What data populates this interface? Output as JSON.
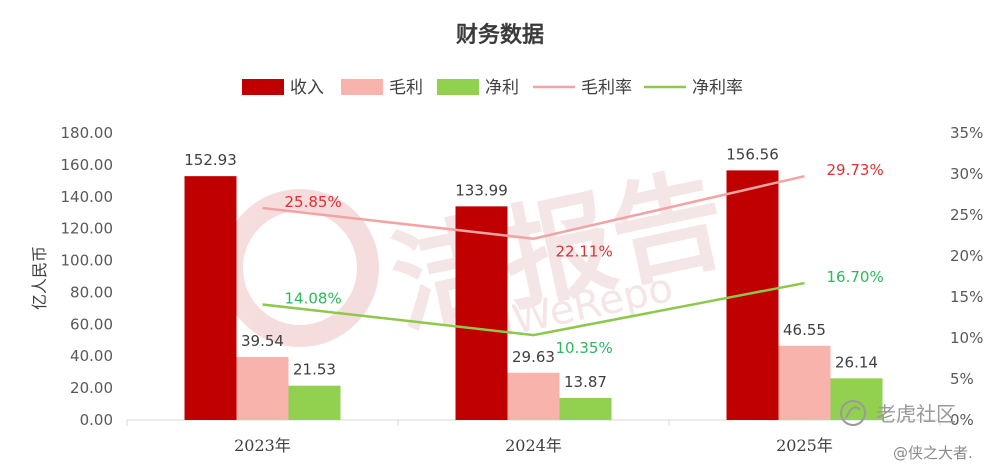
{
  "chart_data": {
    "type": "bar",
    "title": "财务数据",
    "ylabel": "亿人民币",
    "categories": [
      "2023年",
      "2024年",
      "2025年"
    ],
    "ylim": [
      0,
      180
    ],
    "y_ticks": [
      "0.00",
      "20.00",
      "40.00",
      "60.00",
      "80.00",
      "100.00",
      "120.00",
      "140.00",
      "160.00",
      "180.00"
    ],
    "y2lim": [
      0,
      35
    ],
    "y2_ticks": [
      "0%",
      "5%",
      "10%",
      "15%",
      "20%",
      "25%",
      "30%",
      "35%"
    ],
    "legend_position": "top",
    "series": [
      {
        "name": "收入",
        "type": "bar",
        "axis": "left",
        "color": "#c00000",
        "values": [
          152.93,
          133.99,
          156.56
        ],
        "labels": [
          "152.93",
          "133.99",
          "156.56"
        ]
      },
      {
        "name": "毛利",
        "type": "bar",
        "axis": "left",
        "color": "#f8b4ac",
        "values": [
          39.54,
          29.63,
          46.55
        ],
        "labels": [
          "39.54",
          "29.63",
          "46.55"
        ]
      },
      {
        "name": "净利",
        "type": "bar",
        "axis": "left",
        "color": "#92d050",
        "values": [
          21.53,
          13.87,
          26.14
        ],
        "labels": [
          "21.53",
          "13.87",
          "26.14"
        ]
      },
      {
        "name": "毛利率",
        "type": "line",
        "axis": "right",
        "color": "#f4a3a3",
        "label_color": "#e03030",
        "values": [
          25.85,
          22.11,
          29.73
        ],
        "labels": [
          "25.85%",
          "22.11%",
          "29.73%"
        ]
      },
      {
        "name": "净利率",
        "type": "line",
        "axis": "right",
        "color": "#8cc84a",
        "label_color": "#2eb85c",
        "values": [
          14.08,
          10.35,
          16.7
        ],
        "labels": [
          "14.08%",
          "10.35%",
          "16.70%"
        ]
      }
    ]
  },
  "watermark": {
    "text": "洁报告",
    "subtext": "iWeRepo"
  },
  "credit": {
    "brand": "老虎社区",
    "handle": "@侠之大者."
  }
}
